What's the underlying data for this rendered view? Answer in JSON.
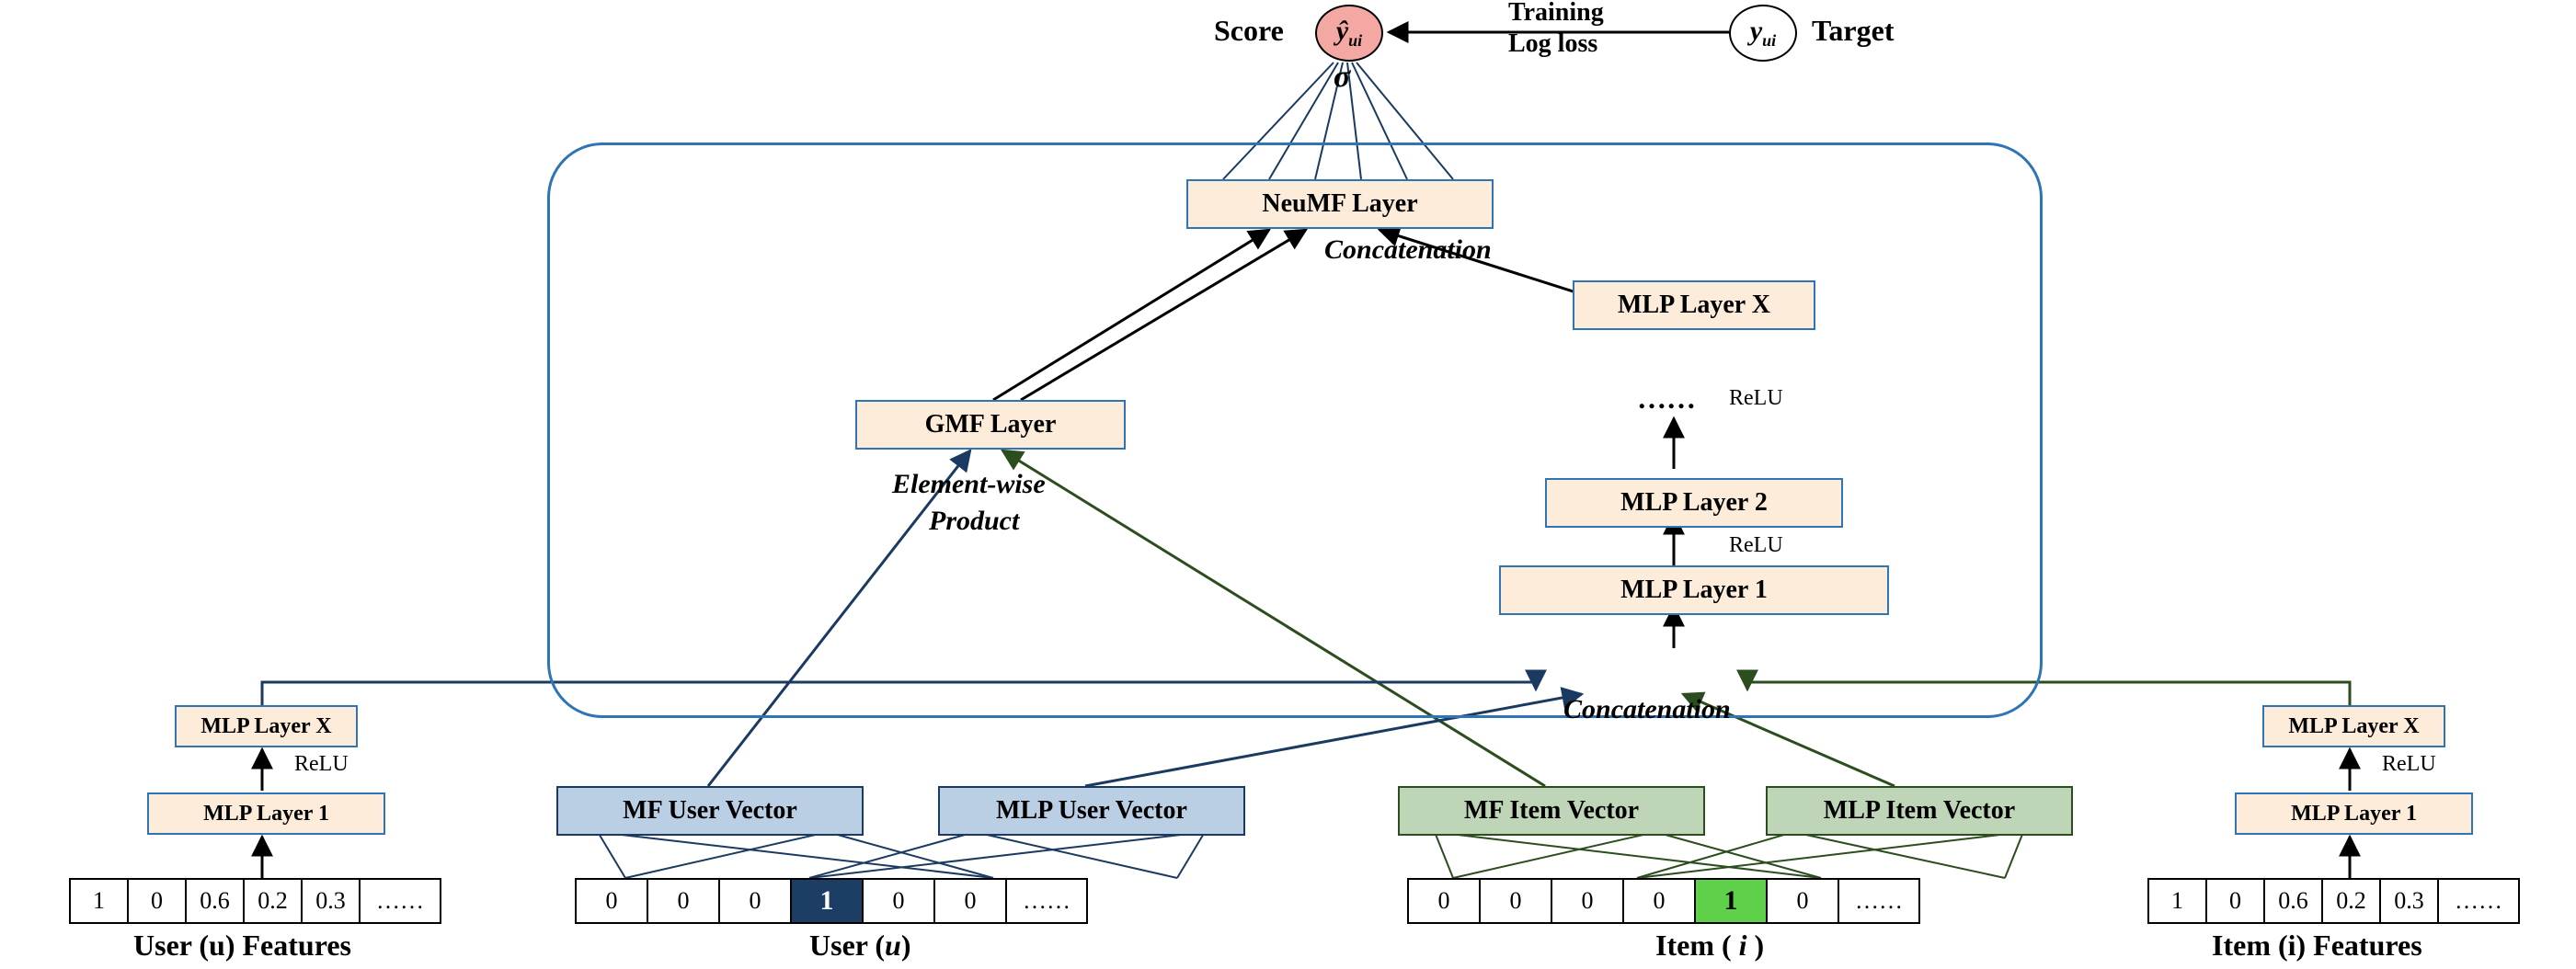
{
  "colors": {
    "box_fill": "#fcecd9",
    "box_border": "#2f74b5",
    "blue_fill": "#bacee4",
    "blue_border": "#1b3a61",
    "green_fill": "#bfd5b8",
    "green_border": "#2c4d1e",
    "dark_cell": "#1c3e65",
    "green_cell": "#5ed04a",
    "score_fill": "#f4a8a3",
    "target_fill": "#ffffff"
  },
  "top": {
    "score_label": "Score",
    "score_symbol": "ŷ",
    "score_sub": "ui",
    "sigma": "σ",
    "training": "Training",
    "logloss": "Log loss",
    "target_symbol": "y",
    "target_sub": "ui",
    "target_label": "Target"
  },
  "layers": {
    "neumf": "NeuMF Layer",
    "gmf": "GMF Layer",
    "mlp_x": "MLP Layer X",
    "mlp_2": "MLP Layer 2",
    "mlp_1": "MLP Layer 1",
    "mf_user": "MF User Vector",
    "mlp_user": "MLP User Vector",
    "mf_item": "MF Item Vector",
    "mlp_item": "MLP Item Vector",
    "left_mlp_x": "MLP Layer X",
    "left_mlp_1": "MLP Layer 1",
    "right_mlp_x": "MLP Layer X",
    "right_mlp_1": "MLP Layer 1"
  },
  "side_labels": {
    "relu": "ReLU",
    "dots": "……",
    "concat": "Concatenation",
    "elementwise": "Element-wise",
    "product": "Product"
  },
  "captions": {
    "user_feat": "User (u) Features",
    "user": "User (",
    "user_var": "u",
    "user_close": ")",
    "item": "Item (",
    "item_var": " i ",
    "item_close": ")",
    "item_feat": "Item (i) Features"
  },
  "seq": {
    "user_feat": [
      "1",
      "0",
      "0.6",
      "0.2",
      "0.3",
      "……"
    ],
    "user": [
      "0",
      "0",
      "0",
      "1",
      "0",
      "0",
      "……"
    ],
    "item": [
      "0",
      "0",
      "0",
      "0",
      "1",
      "0",
      "……"
    ],
    "item_feat": [
      "1",
      "0",
      "0.6",
      "0.2",
      "0.3",
      "……"
    ]
  }
}
